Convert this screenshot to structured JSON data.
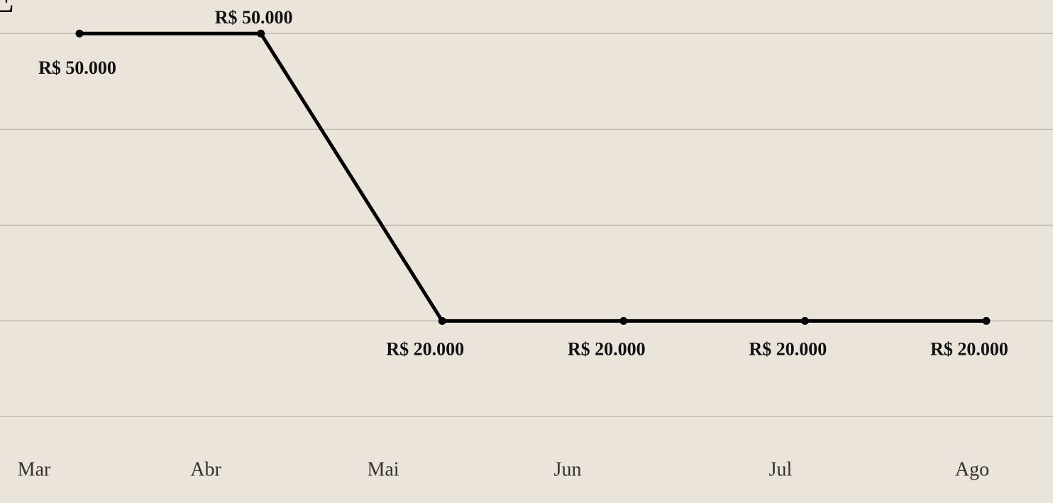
{
  "chart_data": {
    "type": "line",
    "title": "E",
    "categories": [
      "Mar",
      "Abr",
      "Mai",
      "Jun",
      "Jul",
      "Ago"
    ],
    "series": [
      {
        "name": null,
        "color": "#000000",
        "values": [
          50000,
          50000,
          20000,
          20000,
          20000,
          20000
        ],
        "value_labels": [
          "R$ 50.000",
          "R$ 50.000",
          "R$ 20.000",
          "R$ 20.000",
          "R$ 20.000",
          "R$ 20.000"
        ]
      }
    ],
    "ylim": [
      1000,
      53500
    ],
    "yticks": [
      10000,
      20000,
      30000,
      40000,
      50000
    ],
    "grid": true
  }
}
